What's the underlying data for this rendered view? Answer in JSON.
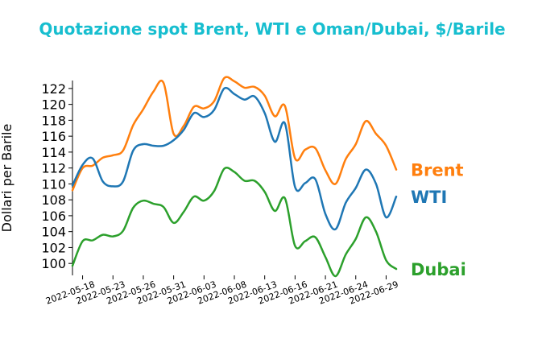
{
  "chart_data": {
    "type": "line",
    "title": "Quotazione spot Brent, WTI e Oman/Dubai, $/Barile",
    "ylabel": "Dollari per Barile",
    "xlabel": "",
    "ylim": [
      98.5,
      123
    ],
    "yticks": [
      100,
      102,
      104,
      106,
      108,
      110,
      112,
      114,
      116,
      118,
      120,
      122
    ],
    "x": [
      "2022-05-17",
      "2022-05-18",
      "2022-05-19",
      "2022-05-20",
      "2022-05-23",
      "2022-05-24",
      "2022-05-25",
      "2022-05-26",
      "2022-05-27",
      "2022-05-30",
      "2022-05-31",
      "2022-06-01",
      "2022-06-02",
      "2022-06-03",
      "2022-06-06",
      "2022-06-07",
      "2022-06-08",
      "2022-06-09",
      "2022-06-10",
      "2022-06-13",
      "2022-06-14",
      "2022-06-15",
      "2022-06-16",
      "2022-06-17",
      "2022-06-20",
      "2022-06-21",
      "2022-06-22",
      "2022-06-23",
      "2022-06-24",
      "2022-06-27",
      "2022-06-28",
      "2022-06-29",
      "2022-06-30"
    ],
    "xticks": [
      "2022-05-18",
      "2022-05-23",
      "2022-05-26",
      "2022-05-31",
      "2022-06-03",
      "2022-06-08",
      "2022-06-13",
      "2022-06-16",
      "2022-06-21",
      "2022-06-24",
      "2022-06-29"
    ],
    "series": [
      {
        "name": "Brent",
        "color": "#ff7f0e",
        "values": [
          109.2,
          112.0,
          112.3,
          113.3,
          113.6,
          114.2,
          117.4,
          119.4,
          121.6,
          122.7,
          116.3,
          117.3,
          119.7,
          119.5,
          120.4,
          123.3,
          122.9,
          122.1,
          122.2,
          121.1,
          118.5,
          119.8,
          113.2,
          114.3,
          114.5,
          111.7,
          110.0,
          113.1,
          115.0,
          117.9,
          116.3,
          114.8,
          111.8
        ]
      },
      {
        "name": "WTI",
        "color": "#1f77b4",
        "values": [
          109.8,
          112.4,
          113.2,
          110.3,
          109.7,
          110.3,
          114.2,
          115.0,
          114.8,
          114.8,
          115.5,
          116.8,
          118.9,
          118.4,
          119.3,
          122.0,
          121.3,
          120.6,
          121.0,
          118.9,
          115.3,
          117.6,
          109.6,
          110.1,
          110.6,
          106.2,
          104.3,
          107.6,
          109.5,
          111.8,
          110.0,
          105.8,
          108.4
        ]
      },
      {
        "name": "Dubai",
        "color": "#2ca02c",
        "values": [
          99.7,
          102.8,
          102.9,
          103.6,
          103.4,
          104.1,
          107.0,
          107.9,
          107.5,
          107.1,
          105.1,
          106.5,
          108.4,
          107.9,
          109.1,
          111.9,
          111.5,
          110.4,
          110.4,
          109.0,
          106.6,
          108.2,
          102.2,
          102.8,
          103.3,
          100.8,
          98.4,
          101.1,
          103.1,
          105.8,
          104.0,
          100.4,
          99.3
        ]
      }
    ]
  }
}
